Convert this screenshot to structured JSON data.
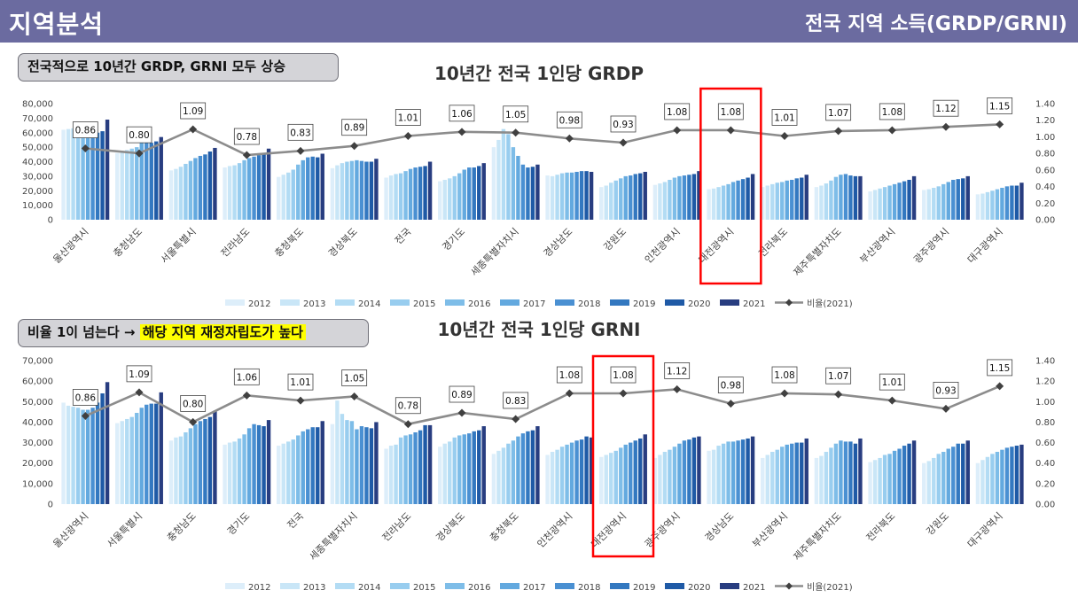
{
  "header": {
    "left_title": "지역분석",
    "right_title": "전국 지역 소득(GRDP/GRNI)"
  },
  "callout_top": {
    "text": "전국적으로 10년간 GRDP, GRNI 모두 상승"
  },
  "callout_bottom": {
    "text_before": "비율 1이 넘는다 → ",
    "highlight": "해당 지역 재정자립도가 높다"
  },
  "colors": {
    "series": [
      "#ddeefa",
      "#c9e6f7",
      "#b3dcf4",
      "#98cdef",
      "#7ebde8",
      "#63a9df",
      "#4a90d2",
      "#3378c0",
      "#1f5aa6",
      "#283d80"
    ],
    "ratio_line": "#8c8c8c",
    "ratio_marker": "#404040",
    "highlight_box": "#ff0000"
  },
  "chart_data": [
    {
      "type": "bar",
      "title": "10년간 전국 1인당 GRDP",
      "categories": [
        "울산광역시",
        "충청남도",
        "서울특별시",
        "전라남도",
        "충청북도",
        "경상북도",
        "전국",
        "경기도",
        "세종특별자치시",
        "경상남도",
        "강원도",
        "인천광역시",
        "대전광역시",
        "전라북도",
        "제주특별자치도",
        "부산광역시",
        "광주광역시",
        "대구광역시"
      ],
      "series": [
        {
          "name": "2012",
          "values": [
            62000,
            46000,
            34000,
            36000,
            29500,
            35500,
            29000,
            26500,
            50000,
            30500,
            22500,
            24000,
            21000,
            22500,
            22500,
            19500,
            20500,
            17500
          ]
        },
        {
          "name": "2013",
          "values": [
            62500,
            47000,
            35000,
            37000,
            31000,
            37500,
            30500,
            27500,
            55000,
            30000,
            23500,
            25000,
            21500,
            23500,
            23500,
            20500,
            21000,
            18000
          ]
        },
        {
          "name": "2014",
          "values": [
            63000,
            48000,
            36500,
            37500,
            32500,
            39000,
            31500,
            28500,
            62500,
            31000,
            25500,
            26000,
            22500,
            24500,
            25000,
            21500,
            22000,
            19000
          ]
        },
        {
          "name": "2015",
          "values": [
            61000,
            49000,
            38500,
            39000,
            34500,
            40000,
            32000,
            30000,
            59000,
            32000,
            27000,
            27500,
            23500,
            25500,
            27000,
            22500,
            23000,
            20000
          ]
        },
        {
          "name": "2016",
          "values": [
            58000,
            50000,
            40500,
            41000,
            38000,
            40500,
            33500,
            32000,
            50000,
            32500,
            28500,
            29000,
            24500,
            26000,
            29500,
            23500,
            24500,
            21000
          ]
        },
        {
          "name": "2017",
          "values": [
            60000,
            53000,
            42500,
            42500,
            41000,
            41000,
            35000,
            34500,
            44000,
            32500,
            30000,
            30000,
            26000,
            27000,
            31000,
            24500,
            26000,
            22000
          ]
        },
        {
          "name": "2018",
          "values": [
            59000,
            54000,
            44000,
            43500,
            43000,
            40500,
            36000,
            36000,
            38000,
            33000,
            30500,
            30500,
            27000,
            27500,
            31500,
            25500,
            27500,
            23000
          ]
        },
        {
          "name": "2019",
          "values": [
            60000,
            53000,
            45000,
            44500,
            43500,
            40000,
            36500,
            36000,
            36000,
            33500,
            31500,
            31000,
            28000,
            28500,
            30500,
            26500,
            28000,
            23500
          ]
        },
        {
          "name": "2020",
          "values": [
            61000,
            54000,
            47000,
            45500,
            43000,
            40000,
            37000,
            37000,
            36500,
            33500,
            32000,
            31500,
            29000,
            29000,
            30000,
            27500,
            28500,
            23500
          ]
        },
        {
          "name": "2021",
          "values": [
            69000,
            57000,
            49500,
            49000,
            45500,
            42000,
            40000,
            39000,
            38000,
            33000,
            33000,
            33500,
            31500,
            31000,
            30000,
            30000,
            30000,
            25500
          ]
        }
      ],
      "ratio": {
        "name": "비율(2021)",
        "values": [
          0.86,
          0.8,
          1.09,
          0.78,
          0.83,
          0.89,
          1.01,
          1.06,
          1.05,
          0.98,
          0.93,
          1.08,
          1.08,
          1.01,
          1.07,
          1.08,
          1.12,
          1.15
        ],
        "labels": [
          "0.86",
          "0.80",
          "1.09",
          "0.78",
          "0.83",
          "0.89",
          "1.01",
          "1.06",
          "1.05",
          "0.98",
          "0.93",
          "1.08",
          "1.08",
          "1.01",
          "1.07",
          "1.08",
          "1.12",
          "1.15"
        ]
      },
      "ylim": [
        0,
        80000
      ],
      "yticks": [
        "0",
        "10,000",
        "20,000",
        "30,000",
        "40,000",
        "50,000",
        "60,000",
        "70,000",
        "80,000"
      ],
      "y2lim": [
        0,
        1.4
      ],
      "y2ticks": [
        "0.00",
        "0.20",
        "0.40",
        "0.60",
        "0.80",
        "1.00",
        "1.20",
        "1.40"
      ],
      "highlight_index": 12
    },
    {
      "type": "bar",
      "title": "10년간 전국 1인당 GRNI",
      "categories": [
        "울산광역시",
        "서울특별시",
        "충청남도",
        "경기도",
        "전국",
        "세종특별자치시",
        "전라남도",
        "경상북도",
        "충청북도",
        "인천광역시",
        "대전광역시",
        "광주광역시",
        "경상남도",
        "부산광역시",
        "제주특별자치도",
        "전라북도",
        "강원도",
        "대구광역시"
      ],
      "series": [
        {
          "name": "2012",
          "values": [
            49500,
            39500,
            31000,
            29000,
            28500,
            39000,
            27000,
            28000,
            24500,
            24000,
            23000,
            22500,
            26000,
            22500,
            22500,
            20500,
            20000,
            20000
          ]
        },
        {
          "name": "2013",
          "values": [
            48000,
            40500,
            32500,
            30000,
            29500,
            50500,
            28500,
            29500,
            26000,
            25500,
            24000,
            24000,
            26500,
            24000,
            23500,
            21500,
            21000,
            21500
          ]
        },
        {
          "name": "2014",
          "values": [
            47500,
            41500,
            33000,
            30500,
            30500,
            44000,
            29000,
            30500,
            27500,
            26500,
            25000,
            25500,
            28500,
            25500,
            25500,
            22500,
            22500,
            23000
          ]
        },
        {
          "name": "2015",
          "values": [
            47000,
            42500,
            35000,
            32000,
            31500,
            41000,
            32500,
            32500,
            29500,
            28000,
            26000,
            26500,
            29500,
            26500,
            27500,
            24000,
            24500,
            24500
          ]
        },
        {
          "name": "2016",
          "values": [
            46000,
            44500,
            37000,
            34000,
            33500,
            40500,
            33500,
            33500,
            31000,
            29000,
            27500,
            28000,
            30500,
            28000,
            29500,
            24500,
            25500,
            25500
          ]
        },
        {
          "name": "2017",
          "values": [
            46000,
            47000,
            39000,
            37000,
            35500,
            36500,
            34000,
            34000,
            33000,
            30000,
            29000,
            29500,
            30500,
            29000,
            31000,
            26000,
            27000,
            26500
          ]
        },
        {
          "name": "2018",
          "values": [
            47000,
            48500,
            40500,
            39000,
            36500,
            38000,
            35000,
            34500,
            34500,
            31000,
            30000,
            31000,
            31000,
            29500,
            30500,
            27000,
            28000,
            27500
          ]
        },
        {
          "name": "2019",
          "values": [
            49500,
            49000,
            41500,
            38500,
            37500,
            37500,
            36000,
            35500,
            35500,
            31500,
            31000,
            31500,
            31500,
            30000,
            30500,
            28500,
            29500,
            28000
          ]
        },
        {
          "name": "2020",
          "values": [
            54000,
            49000,
            42500,
            38000,
            37500,
            37000,
            38500,
            36000,
            36000,
            33000,
            32000,
            32500,
            32000,
            30000,
            29500,
            29500,
            29500,
            28500
          ]
        },
        {
          "name": "2021",
          "values": [
            59500,
            54500,
            45500,
            41000,
            40500,
            40000,
            38500,
            38000,
            38000,
            32500,
            34000,
            33000,
            33000,
            32000,
            32000,
            31000,
            31000,
            29000
          ]
        }
      ],
      "ratio": {
        "name": "비율(2021)",
        "values": [
          0.86,
          1.09,
          0.8,
          1.06,
          1.01,
          1.05,
          0.78,
          0.89,
          0.83,
          1.08,
          1.08,
          1.12,
          0.98,
          1.08,
          1.07,
          1.01,
          0.93,
          1.15
        ],
        "labels": [
          "0.86",
          "1.09",
          "0.80",
          "1.06",
          "1.01",
          "1.05",
          "0.78",
          "0.89",
          "0.83",
          "1.08",
          "1.08",
          "1.12",
          "0.98",
          "1.08",
          "1.07",
          "1.01",
          "0.93",
          "1.15"
        ]
      },
      "ylim": [
        0,
        70000
      ],
      "yticks": [
        "0",
        "10,000",
        "20,000",
        "30,000",
        "40,000",
        "50,000",
        "60,000",
        "70,000"
      ],
      "y2lim": [
        0,
        1.4
      ],
      "y2ticks": [
        "0.00",
        "0.20",
        "0.40",
        "0.60",
        "0.80",
        "1.00",
        "1.20",
        "1.40"
      ],
      "highlight_index": 10
    }
  ]
}
